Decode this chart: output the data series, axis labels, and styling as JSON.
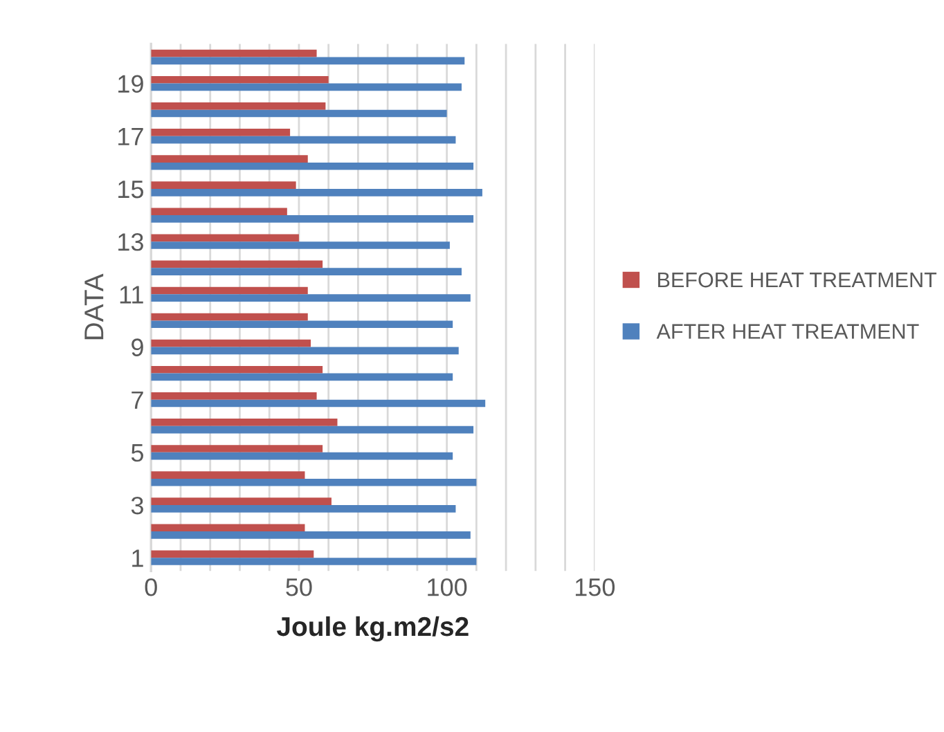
{
  "chart_data": {
    "type": "bar",
    "orientation": "horizontal",
    "xlabel": "Joule kg.m2/s2",
    "ylabel": "DATA",
    "categories": [
      null,
      "19",
      null,
      "17",
      null,
      "15",
      null,
      "13",
      null,
      "11",
      null,
      "9",
      null,
      "7",
      null,
      "5",
      null,
      "3",
      null,
      "1"
    ],
    "series": [
      {
        "name": "BEFORE HEAT TREATMENT",
        "color": "#c0504d",
        "values": [
          56,
          60,
          59,
          47,
          53,
          49,
          46,
          50,
          58,
          53,
          53,
          54,
          58,
          56,
          63,
          58,
          52,
          61,
          52,
          55
        ]
      },
      {
        "name": "AFTER HEAT TREATMENT",
        "color": "#4f81bd",
        "values": [
          106,
          105,
          100,
          103,
          109,
          112,
          109,
          101,
          105,
          108,
          102,
          104,
          102,
          113,
          109,
          102,
          110,
          103,
          108,
          110
        ]
      }
    ],
    "xlim": [
      0,
      150
    ],
    "xticks": [
      0,
      {
        "value": 10,
        "label": null
      },
      {
        "value": 20,
        "label": null
      },
      {
        "value": 30,
        "label": null
      },
      {
        "value": 40,
        "label": null
      },
      50,
      {
        "value": 60,
        "label": null
      },
      {
        "value": 70,
        "label": null
      },
      {
        "value": 80,
        "label": null
      },
      {
        "value": 90,
        "label": null
      },
      100,
      {
        "value": 110,
        "label": null
      },
      {
        "value": 120,
        "label": null
      },
      {
        "value": 130,
        "label": null
      },
      {
        "value": 140,
        "label": null
      },
      150
    ],
    "grid": "x",
    "legend": "right"
  }
}
